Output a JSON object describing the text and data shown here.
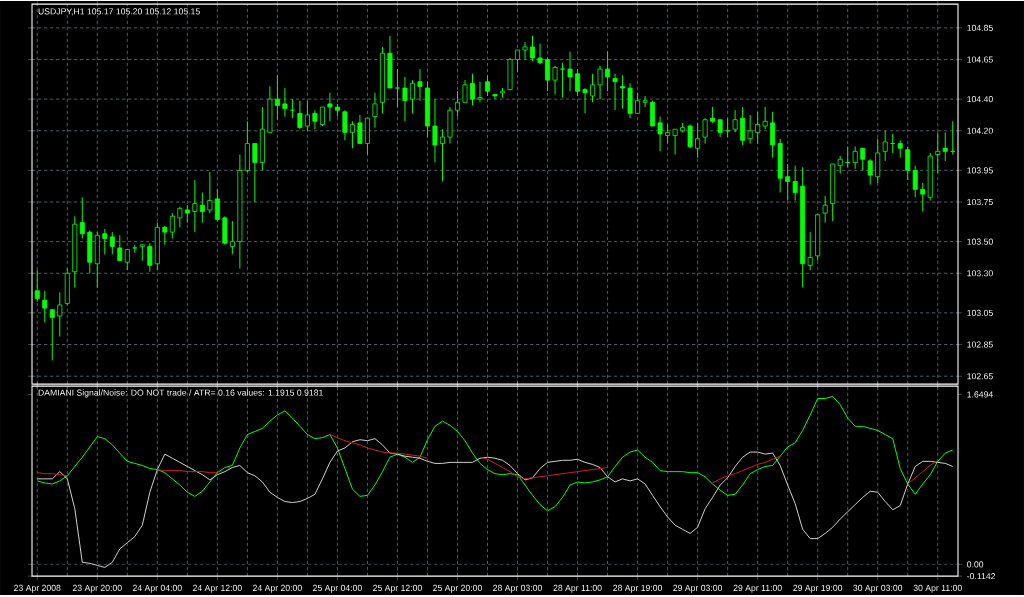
{
  "chart_data": [
    {
      "type": "candlestick",
      "title": "USDJPY,H1  105.17 105.20 105.12 105.15",
      "color": "#00ff00",
      "grid": true,
      "categories": [
        null,
        null,
        null,
        null,
        null,
        null,
        null,
        null,
        null,
        null,
        null,
        null,
        null,
        null,
        null,
        null,
        null,
        null,
        null,
        null,
        null,
        null,
        null,
        null,
        null,
        null,
        null,
        null,
        null,
        null,
        null,
        null,
        null,
        null,
        null,
        null,
        null,
        null,
        null,
        null,
        null,
        null,
        null,
        null,
        null,
        null,
        null,
        null,
        null,
        null,
        null,
        null,
        null,
        null,
        null,
        null,
        null,
        null,
        null,
        null,
        null,
        null,
        null,
        null,
        null,
        null,
        null,
        null,
        null,
        null,
        null,
        null,
        null,
        null,
        null,
        null,
        null,
        null,
        null,
        null,
        null,
        null,
        null,
        null,
        null,
        null,
        null,
        null,
        null,
        null,
        null,
        null,
        null,
        null,
        null,
        null,
        null,
        null,
        null,
        null,
        null,
        null,
        null,
        null,
        null,
        null,
        null,
        null,
        null,
        null,
        null,
        null,
        null,
        null,
        null,
        null,
        null,
        null,
        null,
        null,
        null,
        null,
        null
      ],
      "ylim": [
        102.6,
        105.0
      ],
      "yticks": [
        102.65,
        102.85,
        103.05,
        {
          "value": 103.3,
          "label": "103.30"
        },
        {
          "value": 103.5,
          "label": "103.50"
        },
        103.75,
        103.95,
        {
          "value": 104.2,
          "label": "104.20"
        },
        {
          "value": 104.4,
          "label": "104.40"
        },
        104.65,
        104.85
      ],
      "ohlc": [
        [
          103.19,
          103.32,
          103.12,
          103.14
        ],
        [
          103.13,
          103.19,
          102.99,
          103.08
        ],
        [
          103.07,
          103.07,
          102.75,
          103.02
        ],
        [
          103.03,
          103.18,
          102.9,
          103.1
        ],
        [
          103.11,
          103.33,
          103.1,
          103.3
        ],
        [
          103.31,
          103.66,
          103.21,
          103.61
        ],
        [
          103.62,
          103.78,
          103.52,
          103.55
        ],
        [
          103.56,
          103.57,
          103.3,
          103.37
        ],
        [
          103.36,
          103.56,
          103.21,
          103.54
        ],
        [
          103.55,
          103.58,
          103.42,
          103.52
        ],
        [
          103.53,
          103.56,
          103.42,
          103.47
        ],
        [
          103.46,
          103.54,
          103.38,
          103.38
        ],
        [
          103.37,
          103.45,
          103.32,
          103.45
        ],
        [
          103.46,
          103.48,
          103.43,
          103.46
        ],
        [
          103.47,
          103.48,
          103.38,
          103.48
        ],
        [
          103.47,
          103.49,
          103.31,
          103.35
        ],
        [
          103.36,
          103.62,
          103.32,
          103.59
        ],
        [
          103.59,
          103.6,
          103.48,
          103.56
        ],
        [
          103.56,
          103.68,
          103.52,
          103.66
        ],
        [
          103.65,
          103.72,
          103.59,
          103.71
        ],
        [
          103.7,
          103.73,
          103.62,
          103.68
        ],
        [
          103.69,
          103.89,
          103.56,
          103.74
        ],
        [
          103.73,
          103.81,
          103.62,
          103.69
        ],
        [
          103.7,
          103.94,
          103.68,
          103.76
        ],
        [
          103.77,
          103.83,
          103.63,
          103.64
        ],
        [
          103.65,
          103.66,
          103.48,
          103.49
        ],
        [
          103.47,
          103.63,
          103.42,
          103.5
        ],
        [
          103.5,
          104.05,
          103.33,
          103.95
        ],
        [
          103.95,
          104.26,
          103.94,
          104.12
        ],
        [
          104.12,
          104.12,
          103.75,
          104.0
        ],
        [
          104.0,
          104.35,
          103.95,
          104.21
        ],
        [
          104.19,
          104.48,
          104.19,
          104.4
        ],
        [
          104.4,
          104.55,
          104.27,
          104.36
        ],
        [
          104.37,
          104.47,
          104.29,
          104.34
        ],
        [
          104.33,
          104.4,
          104.28,
          104.33
        ],
        [
          104.31,
          104.39,
          104.21,
          104.22
        ],
        [
          104.23,
          104.39,
          104.2,
          104.3
        ],
        [
          104.31,
          104.33,
          104.21,
          104.26
        ],
        [
          104.24,
          104.35,
          104.23,
          104.35
        ],
        [
          104.37,
          104.44,
          104.26,
          104.35
        ],
        [
          104.35,
          104.37,
          104.29,
          104.33
        ],
        [
          104.32,
          104.33,
          104.14,
          104.19
        ],
        [
          104.19,
          104.26,
          104.09,
          104.24
        ],
        [
          104.25,
          104.3,
          104.12,
          104.12
        ],
        [
          104.12,
          104.28,
          104.05,
          104.28
        ],
        [
          104.29,
          104.44,
          104.22,
          104.37
        ],
        [
          104.38,
          104.73,
          104.31,
          104.69
        ],
        [
          104.69,
          104.8,
          104.47,
          104.47
        ],
        [
          104.47,
          104.59,
          104.35,
          104.47
        ],
        [
          104.47,
          104.54,
          104.26,
          104.39
        ],
        [
          104.4,
          104.52,
          104.31,
          104.5
        ],
        [
          104.51,
          104.59,
          104.39,
          104.48
        ],
        [
          104.47,
          104.51,
          104.16,
          104.23
        ],
        [
          104.23,
          104.4,
          104.0,
          104.11
        ],
        [
          104.12,
          104.21,
          103.88,
          104.16
        ],
        [
          104.16,
          104.35,
          104.12,
          104.33
        ],
        [
          104.33,
          104.45,
          104.29,
          104.38
        ],
        [
          104.38,
          104.52,
          104.38,
          104.49
        ],
        [
          104.5,
          104.56,
          104.36,
          104.4
        ],
        [
          104.4,
          104.51,
          104.38,
          104.41
        ],
        [
          104.51,
          104.55,
          104.42,
          104.45
        ],
        [
          104.43,
          104.43,
          104.4,
          104.42
        ],
        [
          104.44,
          104.47,
          104.41,
          104.45
        ],
        [
          104.46,
          104.66,
          104.46,
          104.65
        ],
        [
          104.65,
          104.71,
          104.57,
          104.71
        ],
        [
          104.71,
          104.76,
          104.65,
          104.73
        ],
        [
          104.73,
          104.8,
          104.64,
          104.66
        ],
        [
          104.66,
          104.75,
          104.62,
          104.63
        ],
        [
          104.65,
          104.66,
          104.45,
          104.52
        ],
        [
          104.52,
          104.61,
          104.43,
          104.6
        ],
        [
          104.59,
          104.63,
          104.41,
          104.59
        ],
        [
          104.59,
          104.7,
          104.45,
          104.54
        ],
        [
          104.56,
          104.59,
          104.42,
          104.45
        ],
        [
          104.46,
          104.47,
          104.31,
          104.44
        ],
        [
          104.42,
          104.56,
          104.38,
          104.49
        ],
        [
          104.49,
          104.61,
          104.4,
          104.59
        ],
        [
          104.59,
          104.7,
          104.45,
          104.54
        ],
        [
          104.53,
          104.56,
          104.33,
          104.51
        ],
        [
          104.48,
          104.55,
          104.34,
          104.47
        ],
        [
          104.47,
          104.5,
          104.28,
          104.31
        ],
        [
          104.31,
          104.44,
          104.31,
          104.39
        ],
        [
          104.38,
          104.42,
          104.35,
          104.39
        ],
        [
          104.38,
          104.39,
          104.23,
          104.23
        ],
        [
          104.25,
          104.29,
          104.07,
          104.18
        ],
        [
          104.17,
          104.24,
          104.12,
          104.19
        ],
        [
          104.17,
          104.21,
          104.05,
          104.21
        ],
        [
          104.2,
          104.25,
          104.19,
          104.22
        ],
        [
          104.23,
          104.24,
          104.09,
          104.1
        ],
        [
          104.09,
          104.25,
          104.03,
          104.15
        ],
        [
          104.16,
          104.28,
          104.12,
          104.27
        ],
        [
          104.28,
          104.35,
          104.25,
          104.26
        ],
        [
          104.27,
          104.27,
          104.16,
          104.19
        ],
        [
          104.2,
          104.28,
          104.16,
          104.2
        ],
        [
          104.21,
          104.33,
          104.19,
          104.27
        ],
        [
          104.28,
          104.35,
          104.11,
          104.14
        ],
        [
          104.15,
          104.3,
          104.12,
          104.2
        ],
        [
          104.19,
          104.32,
          104.12,
          104.24
        ],
        [
          104.23,
          104.35,
          104.21,
          104.26
        ],
        [
          104.25,
          104.32,
          104.03,
          104.11
        ],
        [
          104.12,
          104.15,
          103.81,
          103.9
        ],
        [
          103.91,
          103.99,
          103.76,
          103.88
        ],
        [
          103.88,
          103.98,
          103.76,
          103.81
        ],
        [
          103.85,
          103.97,
          103.21,
          103.36
        ],
        [
          103.35,
          103.56,
          103.32,
          103.4
        ],
        [
          103.41,
          103.67,
          103.38,
          103.67
        ],
        [
          103.68,
          103.79,
          103.62,
          103.73
        ],
        [
          103.74,
          103.99,
          103.63,
          103.99
        ],
        [
          103.98,
          104.04,
          103.93,
          104.02
        ],
        [
          104.0,
          104.1,
          103.97,
          104.0
        ],
        [
          104.0,
          104.1,
          103.96,
          104.07
        ],
        [
          104.09,
          104.09,
          103.95,
          104.02
        ],
        [
          104.01,
          104.02,
          103.86,
          103.92
        ],
        [
          103.91,
          104.15,
          103.87,
          104.06
        ],
        [
          104.07,
          104.2,
          104.01,
          104.13
        ],
        [
          104.12,
          104.18,
          104.06,
          104.12
        ],
        [
          104.12,
          104.14,
          104.03,
          104.09
        ],
        [
          104.08,
          104.1,
          103.89,
          103.95
        ],
        [
          103.95,
          103.98,
          103.78,
          103.83
        ],
        [
          103.83,
          103.87,
          103.69,
          103.8
        ],
        [
          103.78,
          104.06,
          103.76,
          104.04
        ],
        [
          104.05,
          104.19,
          103.93,
          104.07
        ],
        [
          104.09,
          104.19,
          104.01,
          104.07
        ],
        [
          104.07,
          104.26,
          104.05,
          104.07
        ]
      ]
    },
    {
      "type": "line",
      "title": "DAMIANI Signal/Noise: DO NOT trade  /  ATR= 0.16     values: 1.1915 0.9181",
      "grid": "x",
      "categories": [
        "23 Apr 2008",
        null,
        null,
        null,
        null,
        null,
        null,
        null,
        "23 Apr 20:00",
        null,
        null,
        null,
        null,
        null,
        null,
        null,
        "24 Apr 04:00",
        null,
        null,
        null,
        null,
        null,
        null,
        null,
        "24 Apr 12:00",
        null,
        null,
        null,
        null,
        null,
        null,
        null,
        "24 Apr 20:00",
        null,
        null,
        null,
        null,
        null,
        null,
        null,
        "25 Apr 04:00",
        null,
        null,
        null,
        null,
        null,
        null,
        null,
        "25 Apr 12:00",
        null,
        null,
        null,
        null,
        null,
        null,
        null,
        "25 Apr 20:00",
        null,
        null,
        null,
        null,
        null,
        null,
        null,
        "28 Apr 03:00",
        null,
        null,
        null,
        null,
        null,
        null,
        null,
        "28 Apr 11:00",
        null,
        null,
        null,
        null,
        null,
        null,
        null,
        "28 Apr 19:00",
        null,
        null,
        null,
        null,
        null,
        null,
        null,
        "29 Apr 03:00",
        null,
        null,
        null,
        null,
        null,
        null,
        null,
        "29 Apr 11:00",
        null,
        null,
        null,
        null,
        null,
        null,
        null,
        "29 Apr 19:00",
        null,
        null,
        null,
        null,
        null,
        null,
        null,
        "30 Apr 03:00",
        null,
        null,
        null,
        null,
        null,
        null,
        null,
        "30 Apr 11:00",
        null,
        null
      ],
      "ylim": [
        -0.1142,
        1.73
      ],
      "yticks": [
        -0.1142,
        {
          "value": 0,
          "label": "0.00"
        },
        1.6494
      ],
      "ref_lines": [
        {
          "axis": "y",
          "value": 0,
          "color": "#778899",
          "line_style": "dashed"
        }
      ],
      "series": [
        {
          "color": "#00ff00",
          "values": [
            0.81,
            0.79,
            0.78,
            0.81,
            0.86,
            0.95,
            1.04,
            1.14,
            1.24,
            1.22,
            1.16,
            1.08,
            1.0,
            0.98,
            0.96,
            0.93,
            0.92,
            0.89,
            0.83,
            0.77,
            0.7,
            0.66,
            0.71,
            0.8,
            0.89,
            0.94,
            0.96,
            1.13,
            1.26,
            1.29,
            1.32,
            1.39,
            1.45,
            1.49,
            1.42,
            1.34,
            1.26,
            1.22,
            1.23,
            1.26,
            1.13,
            0.93,
            0.73,
            0.66,
            0.67,
            0.77,
            0.9,
            1.04,
            1.07,
            1.04,
            0.99,
            1.04,
            1.21,
            1.34,
            1.39,
            1.35,
            1.29,
            1.2,
            1.08,
            0.98,
            0.92,
            0.88,
            0.87,
            0.88,
            0.87,
            0.77,
            0.67,
            0.58,
            0.52,
            0.56,
            0.65,
            0.77,
            0.8,
            0.79,
            0.8,
            0.82,
            0.85,
            0.95,
            1.04,
            1.09,
            1.11,
            1.04,
            0.99,
            0.91,
            0.9,
            0.9,
            0.9,
            0.89,
            0.89,
            0.85,
            0.78,
            0.72,
            0.67,
            0.68,
            0.77,
            0.88,
            0.92,
            0.95,
            0.96,
            1.05,
            1.14,
            1.18,
            1.3,
            1.45,
            1.61,
            1.61,
            1.63,
            1.55,
            1.42,
            1.34,
            1.34,
            1.32,
            1.3,
            1.26,
            1.22,
            0.93,
            0.78,
            0.68,
            0.78,
            0.87,
            1.0,
            1.08,
            1.11
          ]
        },
        {
          "color": "#d0d0d0",
          "values": [
            0.83,
            0.83,
            0.83,
            0.9,
            0.83,
            0.54,
            0.02,
            0.01,
            -0.01,
            -0.03,
            0.02,
            0.15,
            0.21,
            0.27,
            0.38,
            0.7,
            0.92,
            1.07,
            1.03,
            0.99,
            0.95,
            0.91,
            0.87,
            0.82,
            0.87,
            0.9,
            0.94,
            0.96,
            0.89,
            0.86,
            0.8,
            0.7,
            0.65,
            0.61,
            0.6,
            0.61,
            0.64,
            0.68,
            0.83,
            0.99,
            1.1,
            1.13,
            1.19,
            1.21,
            1.2,
            1.22,
            1.16,
            1.08,
            1.07,
            1.05,
            1.04,
            1.03,
            1.0,
            0.98,
            0.98,
            0.99,
            0.99,
            0.99,
            0.99,
            1.03,
            1.04,
            1.03,
            1.01,
            0.96,
            0.88,
            0.82,
            0.84,
            0.93,
            0.99,
            1.0,
            1.01,
            1.01,
            1.02,
            0.99,
            0.97,
            0.94,
            0.85,
            0.8,
            0.83,
            0.81,
            0.83,
            0.78,
            0.67,
            0.56,
            0.46,
            0.38,
            0.34,
            0.3,
            0.36,
            0.54,
            0.65,
            0.77,
            0.84,
            0.95,
            1.04,
            1.09,
            1.09,
            1.07,
            1.08,
            0.96,
            0.77,
            0.59,
            0.34,
            0.25,
            0.25,
            0.3,
            0.36,
            0.44,
            0.51,
            0.58,
            0.65,
            0.71,
            0.7,
            0.61,
            0.53,
            0.57,
            0.78,
            0.95,
            1.0,
            1.0,
            0.99,
            0.98,
            0.95
          ]
        },
        {
          "color": "#cc2020",
          "values": [
            0.89,
            0.88,
            0.88,
            0.87,
            0.86,
            null,
            null,
            null,
            null,
            null,
            null,
            null,
            null,
            null,
            null,
            null,
            0.92,
            0.91,
            0.91,
            0.91,
            0.9,
            0.9,
            0.9,
            0.89,
            0.89,
            null,
            null,
            null,
            null,
            null,
            null,
            null,
            null,
            null,
            null,
            null,
            null,
            null,
            null,
            1.26,
            1.23,
            1.2,
            1.18,
            1.16,
            1.13,
            1.11,
            1.09,
            1.08,
            1.08,
            1.07,
            1.06,
            1.05,
            1.03,
            null,
            null,
            null,
            null,
            null,
            null,
            1.04,
            1.02,
            0.98,
            0.94,
            0.9,
            0.85,
            0.83,
            0.84,
            0.85,
            0.86,
            0.87,
            0.88,
            0.89,
            0.9,
            0.91,
            0.92,
            0.93,
            0.94,
            null,
            null,
            null,
            null,
            null,
            null,
            null,
            null,
            null,
            null,
            null,
            null,
            null,
            0.79,
            0.83,
            0.86,
            0.88,
            0.91,
            0.94,
            0.97,
            0.99,
            1.02,
            1.05,
            null,
            null,
            null,
            null,
            null,
            null,
            null,
            null,
            null,
            null,
            null,
            null,
            null,
            null,
            null,
            null,
            0.78,
            0.84,
            0.9,
            0.96,
            1.01,
            null,
            null
          ]
        }
      ]
    }
  ]
}
